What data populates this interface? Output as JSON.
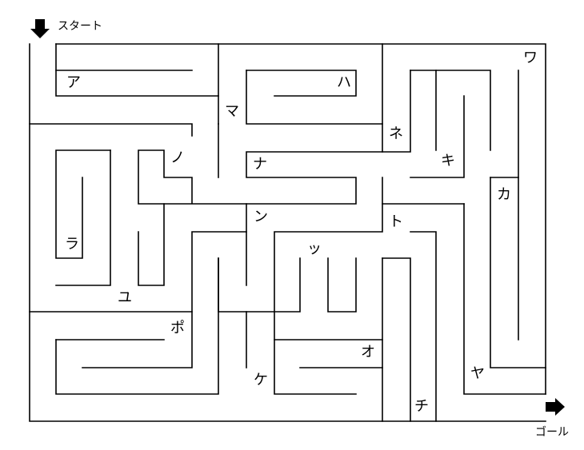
{
  "start_label": "スタート",
  "goal_label": "ゴール",
  "cells": [
    {
      "id": "a",
      "text": "ア"
    },
    {
      "id": "ha",
      "text": "ハ"
    },
    {
      "id": "ma",
      "text": "マ"
    },
    {
      "id": "wa",
      "text": "ワ"
    },
    {
      "id": "ne",
      "text": "ネ"
    },
    {
      "id": "ki",
      "text": "キ"
    },
    {
      "id": "no",
      "text": "ノ"
    },
    {
      "id": "na",
      "text": "ナ"
    },
    {
      "id": "ka",
      "text": "カ"
    },
    {
      "id": "n",
      "text": "ン"
    },
    {
      "id": "to",
      "text": "ト"
    },
    {
      "id": "ra",
      "text": "ラ"
    },
    {
      "id": "tsu",
      "text": "ッ"
    },
    {
      "id": "yu",
      "text": "ユ"
    },
    {
      "id": "po",
      "text": "ポ"
    },
    {
      "id": "o",
      "text": "オ"
    },
    {
      "id": "ke",
      "text": "ケ"
    },
    {
      "id": "ya",
      "text": "ヤ"
    },
    {
      "id": "chi",
      "text": "チ"
    }
  ]
}
